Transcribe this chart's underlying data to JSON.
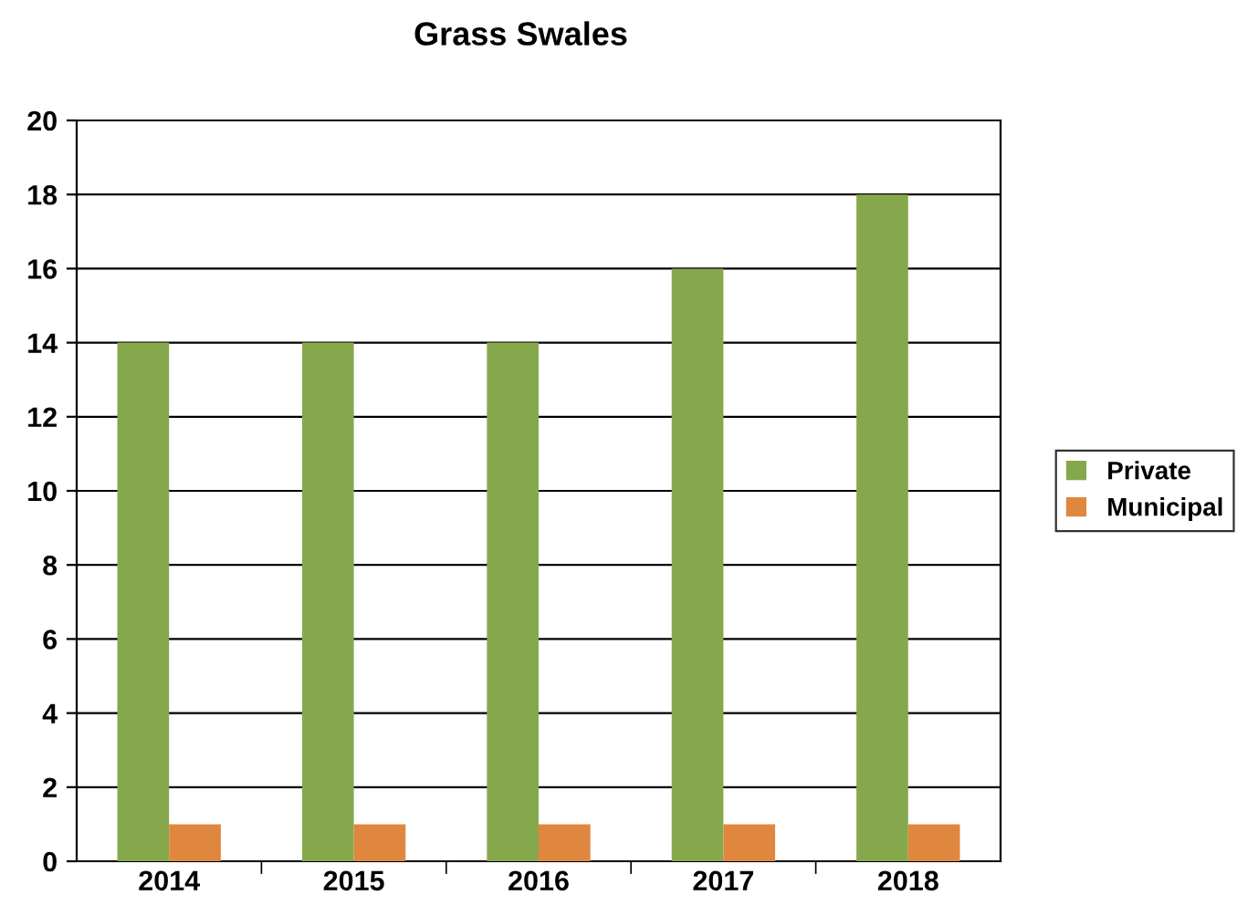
{
  "chart_data": {
    "type": "bar",
    "title": "Grass Swales",
    "categories": [
      "2014",
      "2015",
      "2016",
      "2017",
      "2018"
    ],
    "series": [
      {
        "name": "Private",
        "color": "#86a84c",
        "values": [
          14,
          14,
          14,
          16,
          18
        ]
      },
      {
        "name": "Municipal",
        "color": "#e0873f",
        "values": [
          1,
          1,
          1,
          1,
          1
        ]
      }
    ],
    "ylim": [
      0,
      20
    ],
    "yticks": [
      0,
      2,
      4,
      6,
      8,
      10,
      12,
      14,
      16,
      18,
      20
    ],
    "grid": "y",
    "legend": "right"
  }
}
